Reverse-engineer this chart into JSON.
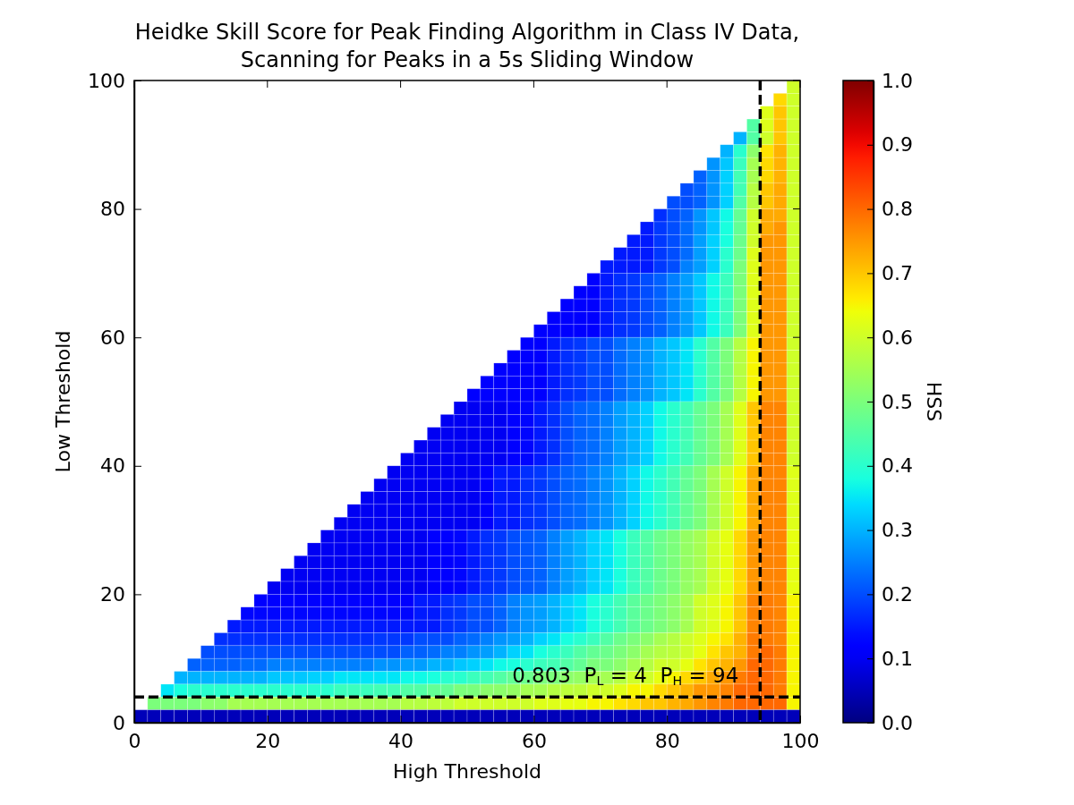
{
  "chart_data": {
    "type": "heatmap",
    "title": "Heidke Skill Score for Peak Finding Algorithm in Class IV Data,\nScanning for Peaks in a 5s Sliding Window",
    "xlabel": "High Threshold",
    "ylabel": "Low Threshold",
    "clabel": "HSS",
    "xlim": [
      0,
      100
    ],
    "xticks": [
      0,
      20,
      40,
      60,
      80,
      100
    ],
    "ylim": [
      0,
      100
    ],
    "yticks": [
      0,
      20,
      40,
      60,
      80,
      100
    ],
    "clim": [
      0,
      1
    ],
    "cticks": [
      {
        "value": 0,
        "label": "0.0"
      },
      0.1,
      0.2,
      0.3,
      0.4,
      0.5,
      0.6,
      0.7,
      0.8,
      0.9,
      {
        "value": 1,
        "label": "1.0"
      }
    ],
    "x": [
      1,
      3,
      5,
      7,
      9,
      11,
      13,
      15,
      17,
      19,
      21,
      23,
      25,
      27,
      29,
      31,
      33,
      35,
      37,
      39,
      41,
      43,
      45,
      47,
      49,
      51,
      53,
      55,
      57,
      59,
      61,
      63,
      65,
      67,
      69,
      71,
      73,
      75,
      77,
      79,
      81,
      83,
      85,
      87,
      89,
      91,
      93,
      95,
      97,
      99
    ],
    "y": [
      99,
      97,
      95,
      93,
      91,
      89,
      87,
      85,
      83,
      81,
      79,
      77,
      75,
      73,
      71,
      69,
      67,
      65,
      63,
      61,
      59,
      57,
      55,
      53,
      51,
      49,
      47,
      45,
      43,
      41,
      39,
      37,
      35,
      33,
      31,
      29,
      27,
      25,
      23,
      21,
      19,
      17,
      15,
      13,
      11,
      9,
      7,
      5,
      3,
      1
    ],
    "cells": [
      [
        null,
        null,
        null,
        null,
        null,
        null,
        null,
        null,
        null,
        null,
        null,
        null,
        null,
        null,
        null,
        null,
        null,
        null,
        null,
        null,
        null,
        null,
        null,
        null,
        null,
        null,
        null,
        null,
        null,
        null,
        null,
        null,
        null,
        null,
        null,
        null,
        null,
        null,
        null,
        null,
        null,
        null,
        null,
        null,
        null,
        null,
        null,
        null,
        null,
        0.6
      ],
      [
        null,
        null,
        null,
        null,
        null,
        null,
        null,
        null,
        null,
        null,
        null,
        null,
        null,
        null,
        null,
        null,
        null,
        null,
        null,
        null,
        null,
        null,
        null,
        null,
        null,
        null,
        null,
        null,
        null,
        null,
        null,
        null,
        null,
        null,
        null,
        null,
        null,
        null,
        null,
        null,
        null,
        null,
        null,
        null,
        null,
        null,
        null,
        null,
        0.68,
        0.6
      ],
      [
        null,
        null,
        null,
        null,
        null,
        null,
        null,
        null,
        null,
        null,
        null,
        null,
        null,
        null,
        null,
        null,
        null,
        null,
        null,
        null,
        null,
        null,
        null,
        null,
        null,
        null,
        null,
        null,
        null,
        null,
        null,
        null,
        null,
        null,
        null,
        null,
        null,
        null,
        null,
        null,
        null,
        null,
        null,
        null,
        null,
        null,
        null,
        0.62,
        0.7,
        0.6
      ],
      [
        null,
        null,
        null,
        null,
        null,
        null,
        null,
        null,
        null,
        null,
        null,
        null,
        null,
        null,
        null,
        null,
        null,
        null,
        null,
        null,
        null,
        null,
        null,
        null,
        null,
        null,
        null,
        null,
        null,
        null,
        null,
        null,
        null,
        null,
        null,
        null,
        null,
        null,
        null,
        null,
        null,
        null,
        null,
        null,
        null,
        null,
        0.45,
        0.62,
        0.7,
        0.6
      ],
      [
        null,
        null,
        null,
        null,
        null,
        null,
        null,
        null,
        null,
        null,
        null,
        null,
        null,
        null,
        null,
        null,
        null,
        null,
        null,
        null,
        null,
        null,
        null,
        null,
        null,
        null,
        null,
        null,
        null,
        null,
        null,
        null,
        null,
        null,
        null,
        null,
        null,
        null,
        null,
        null,
        null,
        null,
        null,
        null,
        null,
        0.3,
        0.45,
        0.6,
        0.7,
        0.6
      ],
      [
        null,
        null,
        null,
        null,
        null,
        null,
        null,
        null,
        null,
        null,
        null,
        null,
        null,
        null,
        null,
        null,
        null,
        null,
        null,
        null,
        null,
        null,
        null,
        null,
        null,
        null,
        null,
        null,
        null,
        null,
        null,
        null,
        null,
        null,
        null,
        null,
        null,
        null,
        null,
        null,
        null,
        null,
        null,
        null,
        0.3,
        0.4,
        0.52,
        0.67,
        0.72,
        0.6
      ],
      [
        null,
        null,
        null,
        null,
        null,
        null,
        null,
        null,
        null,
        null,
        null,
        null,
        null,
        null,
        null,
        null,
        null,
        null,
        null,
        null,
        null,
        null,
        null,
        null,
        null,
        null,
        null,
        null,
        null,
        null,
        null,
        null,
        null,
        null,
        null,
        null,
        null,
        null,
        null,
        null,
        null,
        null,
        null,
        0.27,
        0.32,
        0.42,
        0.55,
        0.68,
        0.72,
        0.6
      ],
      [
        null,
        null,
        null,
        null,
        null,
        null,
        null,
        null,
        null,
        null,
        null,
        null,
        null,
        null,
        null,
        null,
        null,
        null,
        null,
        null,
        null,
        null,
        null,
        null,
        null,
        null,
        null,
        null,
        null,
        null,
        null,
        null,
        null,
        null,
        null,
        null,
        null,
        null,
        null,
        null,
        null,
        null,
        0.22,
        0.27,
        0.33,
        0.43,
        0.55,
        0.68,
        0.72,
        0.6
      ],
      [
        null,
        null,
        null,
        null,
        null,
        null,
        null,
        null,
        null,
        null,
        null,
        null,
        null,
        null,
        null,
        null,
        null,
        null,
        null,
        null,
        null,
        null,
        null,
        null,
        null,
        null,
        null,
        null,
        null,
        null,
        null,
        null,
        null,
        null,
        null,
        null,
        null,
        null,
        null,
        null,
        null,
        0.2,
        0.22,
        0.27,
        0.33,
        0.43,
        0.57,
        0.7,
        0.73,
        0.6
      ],
      [
        null,
        null,
        null,
        null,
        null,
        null,
        null,
        null,
        null,
        null,
        null,
        null,
        null,
        null,
        null,
        null,
        null,
        null,
        null,
        null,
        null,
        null,
        null,
        null,
        null,
        null,
        null,
        null,
        null,
        null,
        null,
        null,
        null,
        null,
        null,
        null,
        null,
        null,
        null,
        null,
        0.2,
        0.2,
        0.22,
        0.27,
        0.33,
        0.45,
        0.57,
        0.7,
        0.73,
        0.6
      ],
      [
        null,
        null,
        null,
        null,
        null,
        null,
        null,
        null,
        null,
        null,
        null,
        null,
        null,
        null,
        null,
        null,
        null,
        null,
        null,
        null,
        null,
        null,
        null,
        null,
        null,
        null,
        null,
        null,
        null,
        null,
        null,
        null,
        null,
        null,
        null,
        null,
        null,
        null,
        null,
        0.17,
        0.2,
        0.22,
        0.27,
        0.32,
        0.37,
        0.47,
        0.6,
        0.73,
        0.73,
        0.6
      ],
      [
        null,
        null,
        null,
        null,
        null,
        null,
        null,
        null,
        null,
        null,
        null,
        null,
        null,
        null,
        null,
        null,
        null,
        null,
        null,
        null,
        null,
        null,
        null,
        null,
        null,
        null,
        null,
        null,
        null,
        null,
        null,
        null,
        null,
        null,
        null,
        null,
        null,
        null,
        0.15,
        0.18,
        0.2,
        0.23,
        0.27,
        0.32,
        0.38,
        0.47,
        0.6,
        0.73,
        0.75,
        0.6
      ],
      [
        null,
        null,
        null,
        null,
        null,
        null,
        null,
        null,
        null,
        null,
        null,
        null,
        null,
        null,
        null,
        null,
        null,
        null,
        null,
        null,
        null,
        null,
        null,
        null,
        null,
        null,
        null,
        null,
        null,
        null,
        null,
        null,
        null,
        null,
        null,
        null,
        null,
        0.15,
        0.15,
        0.18,
        0.2,
        0.23,
        0.28,
        0.33,
        0.38,
        0.48,
        0.6,
        0.75,
        0.75,
        0.6
      ],
      [
        null,
        null,
        null,
        null,
        null,
        null,
        null,
        null,
        null,
        null,
        null,
        null,
        null,
        null,
        null,
        null,
        null,
        null,
        null,
        null,
        null,
        null,
        null,
        null,
        null,
        null,
        null,
        null,
        null,
        null,
        null,
        null,
        null,
        null,
        null,
        null,
        0.15,
        0.15,
        0.15,
        0.18,
        0.2,
        0.23,
        0.28,
        0.33,
        0.4,
        0.48,
        0.62,
        0.75,
        0.75,
        0.6
      ],
      [
        null,
        null,
        null,
        null,
        null,
        null,
        null,
        null,
        null,
        null,
        null,
        null,
        null,
        null,
        null,
        null,
        null,
        null,
        null,
        null,
        null,
        null,
        null,
        null,
        null,
        null,
        null,
        null,
        null,
        null,
        null,
        null,
        null,
        null,
        null,
        0.15,
        0.15,
        0.15,
        0.15,
        0.18,
        0.2,
        0.25,
        0.28,
        0.33,
        0.4,
        0.5,
        0.62,
        0.75,
        0.75,
        0.6
      ],
      [
        null,
        null,
        null,
        null,
        null,
        null,
        null,
        null,
        null,
        null,
        null,
        null,
        null,
        null,
        null,
        null,
        null,
        null,
        null,
        null,
        null,
        null,
        null,
        null,
        null,
        null,
        null,
        null,
        null,
        null,
        null,
        null,
        null,
        null,
        0.12,
        0.15,
        0.17,
        0.18,
        0.2,
        0.22,
        0.25,
        0.28,
        0.32,
        0.37,
        0.42,
        0.5,
        0.62,
        0.75,
        0.75,
        0.6
      ],
      [
        null,
        null,
        null,
        null,
        null,
        null,
        null,
        null,
        null,
        null,
        null,
        null,
        null,
        null,
        null,
        null,
        null,
        null,
        null,
        null,
        null,
        null,
        null,
        null,
        null,
        null,
        null,
        null,
        null,
        null,
        null,
        null,
        null,
        0.12,
        0.12,
        0.15,
        0.17,
        0.18,
        0.2,
        0.22,
        0.25,
        0.28,
        0.32,
        0.37,
        0.42,
        0.5,
        0.62,
        0.75,
        0.75,
        0.6
      ],
      [
        null,
        null,
        null,
        null,
        null,
        null,
        null,
        null,
        null,
        null,
        null,
        null,
        null,
        null,
        null,
        null,
        null,
        null,
        null,
        null,
        null,
        null,
        null,
        null,
        null,
        null,
        null,
        null,
        null,
        null,
        null,
        null,
        0.12,
        0.12,
        0.12,
        0.15,
        0.17,
        0.18,
        0.2,
        0.22,
        0.25,
        0.28,
        0.32,
        0.37,
        0.42,
        0.5,
        0.62,
        0.75,
        0.75,
        0.6
      ],
      [
        null,
        null,
        null,
        null,
        null,
        null,
        null,
        null,
        null,
        null,
        null,
        null,
        null,
        null,
        null,
        null,
        null,
        null,
        null,
        null,
        null,
        null,
        null,
        null,
        null,
        null,
        null,
        null,
        null,
        null,
        null,
        0.12,
        0.12,
        0.12,
        0.12,
        0.15,
        0.17,
        0.18,
        0.2,
        0.22,
        0.25,
        0.28,
        0.32,
        0.37,
        0.42,
        0.5,
        0.62,
        0.75,
        0.75,
        0.6
      ],
      [
        null,
        null,
        null,
        null,
        null,
        null,
        null,
        null,
        null,
        null,
        null,
        null,
        null,
        null,
        null,
        null,
        null,
        null,
        null,
        null,
        null,
        null,
        null,
        null,
        null,
        null,
        null,
        null,
        null,
        null,
        0.12,
        0.12,
        0.12,
        0.12,
        0.12,
        0.15,
        0.17,
        0.18,
        0.2,
        0.22,
        0.25,
        0.28,
        0.32,
        0.37,
        0.42,
        0.5,
        0.62,
        0.75,
        0.75,
        0.6
      ],
      [
        null,
        null,
        null,
        null,
        null,
        null,
        null,
        null,
        null,
        null,
        null,
        null,
        null,
        null,
        null,
        null,
        null,
        null,
        null,
        null,
        null,
        null,
        null,
        null,
        null,
        null,
        null,
        null,
        null,
        0.12,
        0.12,
        0.15,
        0.17,
        0.18,
        0.2,
        0.2,
        0.23,
        0.25,
        0.27,
        0.3,
        0.32,
        0.35,
        0.4,
        0.45,
        0.5,
        0.57,
        0.65,
        0.75,
        0.75,
        0.6
      ],
      [
        null,
        null,
        null,
        null,
        null,
        null,
        null,
        null,
        null,
        null,
        null,
        null,
        null,
        null,
        null,
        null,
        null,
        null,
        null,
        null,
        null,
        null,
        null,
        null,
        null,
        null,
        null,
        null,
        0.12,
        0.12,
        0.12,
        0.15,
        0.17,
        0.18,
        0.2,
        0.2,
        0.23,
        0.25,
        0.27,
        0.3,
        0.32,
        0.35,
        0.4,
        0.45,
        0.5,
        0.57,
        0.65,
        0.75,
        0.75,
        0.6
      ],
      [
        null,
        null,
        null,
        null,
        null,
        null,
        null,
        null,
        null,
        null,
        null,
        null,
        null,
        null,
        null,
        null,
        null,
        null,
        null,
        null,
        null,
        null,
        null,
        null,
        null,
        null,
        null,
        0.12,
        0.12,
        0.12,
        0.12,
        0.15,
        0.17,
        0.18,
        0.2,
        0.2,
        0.23,
        0.25,
        0.27,
        0.3,
        0.32,
        0.35,
        0.4,
        0.45,
        0.5,
        0.57,
        0.65,
        0.75,
        0.75,
        0.6
      ],
      [
        null,
        null,
        null,
        null,
        null,
        null,
        null,
        null,
        null,
        null,
        null,
        null,
        null,
        null,
        null,
        null,
        null,
        null,
        null,
        null,
        null,
        null,
        null,
        null,
        null,
        null,
        0.12,
        0.12,
        0.12,
        0.12,
        0.12,
        0.15,
        0.17,
        0.18,
        0.2,
        0.2,
        0.23,
        0.25,
        0.27,
        0.3,
        0.32,
        0.35,
        0.4,
        0.45,
        0.5,
        0.57,
        0.65,
        0.75,
        0.75,
        0.6
      ],
      [
        null,
        null,
        null,
        null,
        null,
        null,
        null,
        null,
        null,
        null,
        null,
        null,
        null,
        null,
        null,
        null,
        null,
        null,
        null,
        null,
        null,
        null,
        null,
        null,
        null,
        0.12,
        0.12,
        0.12,
        0.12,
        0.12,
        0.12,
        0.15,
        0.17,
        0.18,
        0.2,
        0.2,
        0.23,
        0.25,
        0.27,
        0.3,
        0.32,
        0.35,
        0.4,
        0.45,
        0.5,
        0.57,
        0.65,
        0.75,
        0.75,
        0.6
      ],
      [
        null,
        null,
        null,
        null,
        null,
        null,
        null,
        null,
        null,
        null,
        null,
        null,
        null,
        null,
        null,
        null,
        null,
        null,
        null,
        null,
        null,
        null,
        null,
        null,
        0.1,
        0.1,
        0.1,
        0.1,
        0.12,
        0.13,
        0.15,
        0.17,
        0.2,
        0.22,
        0.23,
        0.25,
        0.28,
        0.3,
        0.33,
        0.37,
        0.4,
        0.43,
        0.47,
        0.5,
        0.55,
        0.62,
        0.7,
        0.77,
        0.77,
        0.6
      ],
      [
        null,
        null,
        null,
        null,
        null,
        null,
        null,
        null,
        null,
        null,
        null,
        null,
        null,
        null,
        null,
        null,
        null,
        null,
        null,
        null,
        null,
        null,
        null,
        0.1,
        0.1,
        0.1,
        0.1,
        0.1,
        0.12,
        0.13,
        0.15,
        0.17,
        0.2,
        0.22,
        0.23,
        0.25,
        0.28,
        0.3,
        0.33,
        0.37,
        0.4,
        0.43,
        0.47,
        0.5,
        0.55,
        0.62,
        0.7,
        0.77,
        0.77,
        0.6
      ],
      [
        null,
        null,
        null,
        null,
        null,
        null,
        null,
        null,
        null,
        null,
        null,
        null,
        null,
        null,
        null,
        null,
        null,
        null,
        null,
        null,
        null,
        null,
        0.1,
        0.1,
        0.1,
        0.1,
        0.1,
        0.1,
        0.12,
        0.13,
        0.15,
        0.17,
        0.2,
        0.22,
        0.23,
        0.25,
        0.28,
        0.3,
        0.33,
        0.37,
        0.4,
        0.43,
        0.47,
        0.5,
        0.55,
        0.62,
        0.7,
        0.77,
        0.77,
        0.6
      ],
      [
        null,
        null,
        null,
        null,
        null,
        null,
        null,
        null,
        null,
        null,
        null,
        null,
        null,
        null,
        null,
        null,
        null,
        null,
        null,
        null,
        null,
        0.1,
        0.1,
        0.1,
        0.1,
        0.1,
        0.1,
        0.1,
        0.12,
        0.13,
        0.15,
        0.17,
        0.2,
        0.22,
        0.23,
        0.25,
        0.28,
        0.3,
        0.33,
        0.37,
        0.4,
        0.43,
        0.47,
        0.5,
        0.55,
        0.62,
        0.7,
        0.77,
        0.77,
        0.6
      ],
      [
        null,
        null,
        null,
        null,
        null,
        null,
        null,
        null,
        null,
        null,
        null,
        null,
        null,
        null,
        null,
        null,
        null,
        null,
        null,
        null,
        0.1,
        0.1,
        0.1,
        0.1,
        0.1,
        0.1,
        0.1,
        0.1,
        0.12,
        0.13,
        0.15,
        0.17,
        0.2,
        0.22,
        0.23,
        0.25,
        0.28,
        0.3,
        0.33,
        0.37,
        0.4,
        0.43,
        0.47,
        0.5,
        0.55,
        0.62,
        0.7,
        0.77,
        0.77,
        0.6
      ],
      [
        null,
        null,
        null,
        null,
        null,
        null,
        null,
        null,
        null,
        null,
        null,
        null,
        null,
        null,
        null,
        null,
        null,
        null,
        null,
        0.1,
        0.1,
        0.1,
        0.1,
        0.1,
        0.1,
        0.1,
        0.12,
        0.15,
        0.15,
        0.17,
        0.18,
        0.2,
        0.22,
        0.23,
        0.25,
        0.27,
        0.3,
        0.33,
        0.37,
        0.4,
        0.43,
        0.47,
        0.5,
        0.55,
        0.6,
        0.65,
        0.73,
        0.77,
        0.77,
        0.62
      ],
      [
        null,
        null,
        null,
        null,
        null,
        null,
        null,
        null,
        null,
        null,
        null,
        null,
        null,
        null,
        null,
        null,
        null,
        null,
        0.1,
        0.1,
        0.1,
        0.1,
        0.1,
        0.1,
        0.1,
        0.1,
        0.12,
        0.15,
        0.15,
        0.17,
        0.18,
        0.2,
        0.22,
        0.23,
        0.25,
        0.27,
        0.3,
        0.33,
        0.37,
        0.4,
        0.43,
        0.47,
        0.5,
        0.55,
        0.6,
        0.65,
        0.73,
        0.77,
        0.77,
        0.62
      ],
      [
        null,
        null,
        null,
        null,
        null,
        null,
        null,
        null,
        null,
        null,
        null,
        null,
        null,
        null,
        null,
        null,
        null,
        0.1,
        0.1,
        0.1,
        0.1,
        0.1,
        0.1,
        0.1,
        0.1,
        0.1,
        0.12,
        0.15,
        0.15,
        0.17,
        0.18,
        0.2,
        0.22,
        0.23,
        0.25,
        0.27,
        0.3,
        0.33,
        0.37,
        0.4,
        0.43,
        0.47,
        0.5,
        0.55,
        0.6,
        0.65,
        0.73,
        0.77,
        0.77,
        0.62
      ],
      [
        null,
        null,
        null,
        null,
        null,
        null,
        null,
        null,
        null,
        null,
        null,
        null,
        null,
        null,
        null,
        null,
        0.1,
        0.1,
        0.1,
        0.1,
        0.1,
        0.1,
        0.1,
        0.1,
        0.1,
        0.1,
        0.12,
        0.15,
        0.15,
        0.17,
        0.18,
        0.2,
        0.22,
        0.23,
        0.25,
        0.27,
        0.3,
        0.33,
        0.37,
        0.4,
        0.43,
        0.47,
        0.5,
        0.55,
        0.6,
        0.65,
        0.73,
        0.77,
        0.77,
        0.62
      ],
      [
        null,
        null,
        null,
        null,
        null,
        null,
        null,
        null,
        null,
        null,
        null,
        null,
        null,
        null,
        null,
        0.1,
        0.1,
        0.1,
        0.1,
        0.1,
        0.1,
        0.1,
        0.1,
        0.1,
        0.1,
        0.1,
        0.12,
        0.15,
        0.15,
        0.17,
        0.18,
        0.2,
        0.22,
        0.23,
        0.25,
        0.27,
        0.3,
        0.33,
        0.37,
        0.4,
        0.43,
        0.47,
        0.5,
        0.55,
        0.6,
        0.65,
        0.73,
        0.77,
        0.77,
        0.62
      ],
      [
        null,
        null,
        null,
        null,
        null,
        null,
        null,
        null,
        null,
        null,
        null,
        null,
        null,
        null,
        0.1,
        0.1,
        0.1,
        0.1,
        0.1,
        0.1,
        0.1,
        0.1,
        0.12,
        0.12,
        0.13,
        0.15,
        0.17,
        0.18,
        0.2,
        0.21,
        0.22,
        0.25,
        0.28,
        0.3,
        0.33,
        0.35,
        0.38,
        0.42,
        0.45,
        0.48,
        0.5,
        0.53,
        0.55,
        0.6,
        0.63,
        0.68,
        0.75,
        0.77,
        0.77,
        0.63
      ],
      [
        null,
        null,
        null,
        null,
        null,
        null,
        null,
        null,
        null,
        null,
        null,
        null,
        null,
        0.1,
        0.1,
        0.1,
        0.1,
        0.1,
        0.1,
        0.1,
        0.1,
        0.1,
        0.12,
        0.12,
        0.13,
        0.15,
        0.17,
        0.18,
        0.2,
        0.21,
        0.22,
        0.25,
        0.28,
        0.3,
        0.33,
        0.35,
        0.38,
        0.42,
        0.45,
        0.48,
        0.5,
        0.53,
        0.55,
        0.6,
        0.63,
        0.68,
        0.75,
        0.77,
        0.77,
        0.63
      ],
      [
        null,
        null,
        null,
        null,
        null,
        null,
        null,
        null,
        null,
        null,
        null,
        null,
        0.1,
        0.1,
        0.1,
        0.1,
        0.1,
        0.1,
        0.1,
        0.1,
        0.1,
        0.1,
        0.12,
        0.12,
        0.13,
        0.15,
        0.17,
        0.18,
        0.2,
        0.21,
        0.22,
        0.25,
        0.28,
        0.3,
        0.33,
        0.35,
        0.38,
        0.42,
        0.45,
        0.48,
        0.5,
        0.53,
        0.55,
        0.6,
        0.63,
        0.68,
        0.75,
        0.77,
        0.77,
        0.63
      ],
      [
        null,
        null,
        null,
        null,
        null,
        null,
        null,
        null,
        null,
        null,
        null,
        0.1,
        0.1,
        0.1,
        0.1,
        0.1,
        0.1,
        0.1,
        0.1,
        0.1,
        0.1,
        0.1,
        0.12,
        0.12,
        0.13,
        0.15,
        0.17,
        0.18,
        0.2,
        0.21,
        0.22,
        0.25,
        0.28,
        0.3,
        0.33,
        0.35,
        0.38,
        0.42,
        0.45,
        0.48,
        0.5,
        0.53,
        0.55,
        0.6,
        0.63,
        0.68,
        0.75,
        0.77,
        0.77,
        0.63
      ],
      [
        null,
        null,
        null,
        null,
        null,
        null,
        null,
        null,
        null,
        null,
        0.1,
        0.1,
        0.1,
        0.1,
        0.1,
        0.1,
        0.1,
        0.1,
        0.1,
        0.1,
        0.1,
        0.1,
        0.12,
        0.12,
        0.13,
        0.15,
        0.17,
        0.18,
        0.2,
        0.21,
        0.22,
        0.25,
        0.28,
        0.3,
        0.33,
        0.35,
        0.38,
        0.42,
        0.45,
        0.48,
        0.5,
        0.53,
        0.55,
        0.6,
        0.63,
        0.68,
        0.75,
        0.77,
        0.77,
        0.63
      ],
      [
        null,
        null,
        null,
        null,
        null,
        null,
        null,
        null,
        null,
        0.12,
        0.12,
        0.12,
        0.12,
        0.12,
        0.12,
        0.12,
        0.12,
        0.12,
        0.12,
        0.12,
        0.12,
        0.15,
        0.15,
        0.17,
        0.18,
        0.2,
        0.2,
        0.22,
        0.25,
        0.27,
        0.28,
        0.3,
        0.33,
        0.35,
        0.38,
        0.4,
        0.43,
        0.46,
        0.48,
        0.5,
        0.52,
        0.55,
        0.6,
        0.62,
        0.65,
        0.7,
        0.77,
        0.78,
        0.77,
        0.65
      ],
      [
        null,
        null,
        null,
        null,
        null,
        null,
        null,
        null,
        0.13,
        0.13,
        0.13,
        0.13,
        0.13,
        0.13,
        0.13,
        0.13,
        0.13,
        0.13,
        0.13,
        0.13,
        0.13,
        0.15,
        0.15,
        0.17,
        0.18,
        0.2,
        0.2,
        0.22,
        0.25,
        0.27,
        0.28,
        0.3,
        0.33,
        0.35,
        0.38,
        0.4,
        0.43,
        0.46,
        0.48,
        0.5,
        0.52,
        0.55,
        0.6,
        0.62,
        0.65,
        0.7,
        0.77,
        0.78,
        0.77,
        0.65
      ],
      [
        null,
        null,
        null,
        null,
        null,
        null,
        null,
        0.15,
        0.15,
        0.15,
        0.15,
        0.15,
        0.15,
        0.15,
        0.15,
        0.15,
        0.15,
        0.15,
        0.15,
        0.15,
        0.15,
        0.15,
        0.15,
        0.17,
        0.18,
        0.2,
        0.2,
        0.22,
        0.25,
        0.27,
        0.28,
        0.3,
        0.33,
        0.35,
        0.38,
        0.4,
        0.43,
        0.46,
        0.48,
        0.5,
        0.52,
        0.55,
        0.6,
        0.62,
        0.65,
        0.7,
        0.77,
        0.78,
        0.77,
        0.65
      ],
      [
        null,
        null,
        null,
        null,
        null,
        null,
        0.17,
        0.17,
        0.17,
        0.17,
        0.17,
        0.17,
        0.17,
        0.17,
        0.17,
        0.17,
        0.17,
        0.17,
        0.18,
        0.18,
        0.18,
        0.2,
        0.2,
        0.2,
        0.22,
        0.23,
        0.25,
        0.27,
        0.28,
        0.3,
        0.33,
        0.35,
        0.38,
        0.4,
        0.42,
        0.45,
        0.48,
        0.5,
        0.52,
        0.55,
        0.57,
        0.6,
        0.62,
        0.65,
        0.67,
        0.72,
        0.78,
        0.78,
        0.77,
        0.65
      ],
      [
        null,
        null,
        null,
        null,
        null,
        0.2,
        0.2,
        0.2,
        0.2,
        0.2,
        0.2,
        0.2,
        0.2,
        0.2,
        0.2,
        0.2,
        0.2,
        0.2,
        0.2,
        0.2,
        0.22,
        0.22,
        0.23,
        0.25,
        0.25,
        0.27,
        0.28,
        0.3,
        0.33,
        0.35,
        0.38,
        0.4,
        0.42,
        0.45,
        0.47,
        0.48,
        0.5,
        0.52,
        0.55,
        0.57,
        0.58,
        0.6,
        0.63,
        0.67,
        0.7,
        0.72,
        0.78,
        0.8,
        0.78,
        0.65
      ],
      [
        null,
        null,
        null,
        null,
        0.22,
        0.22,
        0.22,
        0.22,
        0.23,
        0.23,
        0.25,
        0.25,
        0.25,
        0.25,
        0.25,
        0.25,
        0.25,
        0.25,
        0.27,
        0.27,
        0.28,
        0.28,
        0.3,
        0.3,
        0.32,
        0.33,
        0.35,
        0.37,
        0.38,
        0.4,
        0.42,
        0.43,
        0.45,
        0.47,
        0.5,
        0.5,
        0.52,
        0.55,
        0.57,
        0.6,
        0.6,
        0.63,
        0.67,
        0.7,
        0.72,
        0.75,
        0.8,
        0.8,
        0.78,
        0.65
      ],
      [
        null,
        null,
        null,
        0.3,
        0.3,
        0.3,
        0.3,
        0.3,
        0.3,
        0.3,
        0.32,
        0.32,
        0.32,
        0.33,
        0.33,
        0.35,
        0.35,
        0.35,
        0.35,
        0.35,
        0.37,
        0.37,
        0.38,
        0.4,
        0.4,
        0.42,
        0.43,
        0.45,
        0.47,
        0.48,
        0.5,
        0.5,
        0.52,
        0.53,
        0.55,
        0.55,
        0.57,
        0.6,
        0.6,
        0.63,
        0.65,
        0.68,
        0.7,
        0.73,
        0.75,
        0.78,
        0.8,
        0.8,
        0.78,
        0.65
      ],
      [
        null,
        null,
        0.35,
        0.38,
        0.4,
        0.4,
        0.4,
        0.4,
        0.4,
        0.4,
        0.4,
        0.4,
        0.4,
        0.4,
        0.4,
        0.42,
        0.42,
        0.42,
        0.43,
        0.43,
        0.45,
        0.45,
        0.47,
        0.47,
        0.5,
        0.5,
        0.52,
        0.52,
        0.53,
        0.55,
        0.55,
        0.57,
        0.58,
        0.58,
        0.6,
        0.6,
        0.62,
        0.65,
        0.65,
        0.68,
        0.7,
        0.72,
        0.75,
        0.75,
        0.77,
        0.8,
        0.8,
        0.8,
        0.78,
        0.65
      ],
      [
        null,
        0.5,
        0.5,
        0.5,
        0.5,
        0.52,
        0.52,
        0.55,
        0.55,
        0.55,
        0.55,
        0.55,
        0.55,
        0.55,
        0.55,
        0.55,
        0.55,
        0.55,
        0.55,
        0.55,
        0.57,
        0.57,
        0.58,
        0.58,
        0.6,
        0.6,
        0.6,
        0.6,
        0.6,
        0.6,
        0.62,
        0.62,
        0.63,
        0.63,
        0.65,
        0.65,
        0.67,
        0.68,
        0.7,
        0.7,
        0.72,
        0.73,
        0.75,
        0.77,
        0.78,
        0.8,
        0.8,
        0.8,
        0.8,
        0.65
      ],
      [
        0.05,
        0.05,
        0.05,
        0.05,
        0.05,
        0.05,
        0.05,
        0.05,
        0.05,
        0.05,
        0.05,
        0.05,
        0.05,
        0.05,
        0.05,
        0.05,
        0.05,
        0.05,
        0.05,
        0.05,
        0.05,
        0.05,
        0.05,
        0.05,
        0.05,
        0.05,
        0.05,
        0.05,
        0.05,
        0.05,
        0.05,
        0.05,
        0.05,
        0.05,
        0.05,
        0.05,
        0.05,
        0.05,
        0.05,
        0.05,
        0.05,
        0.05,
        0.05,
        0.05,
        0.05,
        0.05,
        0.05,
        0.05,
        0.05,
        0.05
      ]
    ],
    "ref_lines": [
      {
        "axis": "y",
        "value": 4,
        "color": "#000000",
        "line_style": "dashed"
      },
      {
        "axis": "x",
        "value": 94,
        "color": "#000000",
        "line_style": "dashed"
      }
    ],
    "annotations": [
      {
        "text": "0.803  P$_{L}$ = 4  P$_{H}$ = 94",
        "x": 94,
        "y": 4
      }
    ]
  }
}
